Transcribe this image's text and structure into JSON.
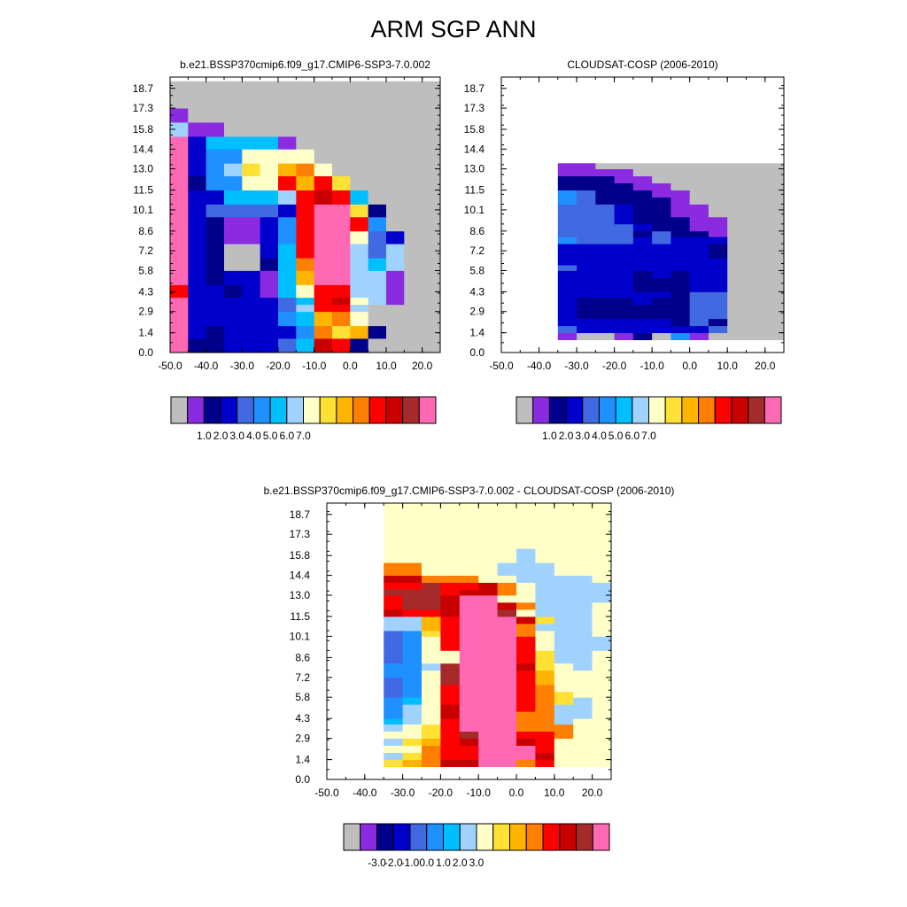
{
  "title": "ARM SGP ANN",
  "palette": {
    "missing": "#bebebe",
    "levels": [
      "#8a2be2",
      "#00008b",
      "#0000cd",
      "#4169e1",
      "#1e90ff",
      "#00bfff",
      "#a0d2ff",
      "#ffffc8",
      "#ffe135",
      "#ffb400",
      "#ff7f00",
      "#ff0000",
      "#c80000",
      "#a52a2a",
      "#ff69b4"
    ]
  },
  "chart_data": [
    {
      "type": "heatmap",
      "title": "b.e21.BSSP370cmip6.f09_g17.CMIP6-SSP3-7.0.002",
      "xticks": [
        "-50.0",
        "-40.0",
        "-30.0",
        "-20.0",
        "-10.0",
        "0.0",
        "10.0",
        "20.0"
      ],
      "yticks": [
        "0.0",
        "1.4",
        "2.9",
        "4.3",
        "5.8",
        "7.2",
        "8.6",
        "10.1",
        "11.5",
        "13.0",
        "14.4",
        "15.8",
        "17.3",
        "18.7"
      ],
      "xlim": [
        -50,
        25
      ],
      "ylim": [
        0,
        19.5
      ],
      "x_edges": [
        -50,
        -45,
        -40,
        -35,
        -30,
        -25,
        -20,
        -15,
        -10,
        -5,
        0,
        5,
        10,
        15,
        20,
        25
      ],
      "y_edges": [
        0,
        1,
        1.9,
        2.9,
        3.4,
        3.9,
        4.8,
        5.8,
        6.7,
        7.7,
        8.6,
        9.6,
        10.5,
        11.5,
        12.5,
        13.4,
        14.4,
        15.3,
        16.3,
        17.3,
        18.2,
        19.2
      ],
      "colorbar_labels": [
        "1.0",
        "2.0",
        "3.0",
        "4.0",
        "5.0",
        "6.0",
        "7.0"
      ],
      "rows": [
        [
          15,
          2,
          2,
          3,
          3,
          3,
          4,
          6,
          13,
          12,
          2,
          0,
          0,
          0,
          0
        ],
        [
          15,
          3,
          2,
          3,
          3,
          3,
          3,
          5,
          11,
          9,
          10,
          2,
          0,
          0,
          0
        ],
        [
          15,
          3,
          3,
          3,
          3,
          3,
          5,
          6,
          10,
          11,
          8,
          0,
          0,
          0,
          0
        ],
        [
          15,
          3,
          3,
          3,
          3,
          3,
          4,
          7,
          12,
          12,
          7,
          0,
          0,
          0,
          0
        ],
        [
          15,
          3,
          3,
          3,
          3,
          3,
          4,
          6,
          12,
          13,
          8,
          7,
          1,
          0,
          0
        ],
        [
          12,
          3,
          3,
          2,
          3,
          1,
          6,
          8,
          12,
          12,
          7,
          7,
          1,
          0,
          0
        ],
        [
          15,
          3,
          2,
          3,
          3,
          1,
          6,
          10,
          15,
          15,
          7,
          7,
          1,
          0,
          0
        ],
        [
          15,
          3,
          2,
          0,
          0,
          2,
          6,
          11,
          15,
          15,
          7,
          6,
          7,
          0,
          0
        ],
        [
          15,
          3,
          2,
          0,
          0,
          3,
          6,
          12,
          15,
          15,
          7,
          4,
          7,
          0,
          0
        ],
        [
          15,
          3,
          2,
          1,
          1,
          3,
          5,
          12,
          15,
          15,
          8,
          4,
          3,
          0,
          0
        ],
        [
          15,
          3,
          2,
          1,
          1,
          3,
          5,
          12,
          15,
          15,
          12,
          5,
          0,
          0,
          0
        ],
        [
          15,
          3,
          4,
          4,
          4,
          4,
          3,
          12,
          15,
          15,
          9,
          2,
          0,
          0,
          0
        ],
        [
          15,
          3,
          3,
          6,
          6,
          6,
          7,
          12,
          13,
          12,
          6,
          0,
          0,
          0,
          0
        ],
        [
          15,
          2,
          5,
          5,
          8,
          8,
          12,
          10,
          12,
          9,
          0,
          0,
          0,
          0,
          0
        ],
        [
          15,
          3,
          5,
          7,
          9,
          8,
          10,
          11,
          8,
          0,
          0,
          0,
          0,
          0,
          0
        ],
        [
          15,
          3,
          5,
          5,
          8,
          8,
          8,
          8,
          0,
          0,
          0,
          0,
          0,
          0,
          0
        ],
        [
          15,
          3,
          6,
          6,
          6,
          6,
          1,
          0,
          0,
          0,
          0,
          0,
          0,
          0,
          0
        ],
        [
          7,
          1,
          1,
          0,
          0,
          0,
          0,
          0,
          0,
          0,
          0,
          0,
          0,
          0,
          0
        ],
        [
          1,
          0,
          0,
          0,
          0,
          0,
          0,
          0,
          0,
          0,
          0,
          0,
          0,
          0,
          0
        ],
        [
          0,
          0,
          0,
          0,
          0,
          0,
          0,
          0,
          0,
          0,
          0,
          0,
          0,
          0,
          0
        ],
        [
          0,
          0,
          0,
          0,
          0,
          0,
          0,
          0,
          0,
          0,
          0,
          0,
          0,
          0,
          0
        ]
      ]
    },
    {
      "type": "heatmap",
      "title": "CLOUDSAT-COSP (2006-2010)",
      "xticks": [
        "-50.0",
        "-40.0",
        "-30.0",
        "-20.0",
        "-10.0",
        "0.0",
        "10.0",
        "20.0"
      ],
      "yticks": [
        "0.0",
        "1.4",
        "2.9",
        "4.3",
        "5.8",
        "7.2",
        "8.6",
        "10.1",
        "11.5",
        "13.0",
        "14.4",
        "15.8",
        "17.3",
        "18.7"
      ],
      "xlim": [
        -50,
        25
      ],
      "ylim": [
        0,
        19.5
      ],
      "x_edges": [
        -35,
        -30,
        -25,
        -20,
        -15,
        -10,
        -5,
        0,
        5,
        10,
        15,
        20,
        25
      ],
      "y_edges": [
        0.9,
        1.4,
        1.9,
        2.4,
        2.9,
        3.4,
        3.9,
        4.3,
        4.8,
        5.3,
        5.8,
        6.2,
        6.7,
        7.2,
        7.7,
        8.2,
        8.6,
        9.1,
        9.6,
        10.1,
        10.5,
        11.0,
        11.5,
        12.0,
        12.5,
        13.0,
        13.4
      ],
      "colorbar_labels": [
        "1.0",
        "2.0",
        "3.0",
        "4.0",
        "5.0",
        "6.0",
        "7.0"
      ],
      "rows": [
        [
          1,
          0,
          0,
          1,
          2,
          0,
          5,
          1,
          0,
          0,
          0,
          0
        ],
        [
          4,
          3,
          3,
          3,
          3,
          3,
          3,
          3,
          4,
          0,
          0,
          0
        ],
        [
          3,
          3,
          3,
          3,
          3,
          3,
          2,
          4,
          2,
          0,
          0,
          0
        ],
        [
          3,
          2,
          2,
          2,
          2,
          2,
          2,
          4,
          4,
          0,
          0,
          0
        ],
        [
          3,
          2,
          2,
          2,
          2,
          2,
          2,
          4,
          4,
          0,
          0,
          0
        ],
        [
          3,
          2,
          2,
          2,
          3,
          2,
          2,
          4,
          4,
          0,
          0,
          0
        ],
        [
          3,
          3,
          3,
          3,
          3,
          3,
          2,
          4,
          4,
          0,
          0,
          0
        ],
        [
          3,
          3,
          3,
          3,
          2,
          2,
          2,
          3,
          3,
          0,
          0,
          0
        ],
        [
          3,
          3,
          3,
          3,
          2,
          2,
          2,
          3,
          3,
          0,
          0,
          0
        ],
        [
          3,
          3,
          3,
          3,
          2,
          3,
          2,
          3,
          3,
          0,
          0,
          0
        ],
        [
          4,
          3,
          3,
          3,
          3,
          3,
          3,
          3,
          3,
          0,
          0,
          0
        ],
        [
          3,
          3,
          3,
          3,
          3,
          3,
          3,
          3,
          3,
          0,
          0,
          0
        ],
        [
          3,
          3,
          3,
          3,
          3,
          3,
          3,
          3,
          2,
          0,
          0,
          0
        ],
        [
          3,
          3,
          3,
          3,
          3,
          3,
          3,
          3,
          2,
          0,
          0,
          0
        ],
        [
          5,
          4,
          4,
          4,
          3,
          4,
          3,
          3,
          3,
          0,
          0,
          0
        ],
        [
          4,
          4,
          4,
          4,
          2,
          4,
          2,
          2,
          1,
          0,
          0,
          0
        ],
        [
          4,
          4,
          4,
          4,
          3,
          2,
          2,
          1,
          1,
          0,
          0,
          0
        ],
        [
          4,
          4,
          4,
          3,
          2,
          2,
          2,
          1,
          1,
          0,
          0,
          0
        ],
        [
          4,
          4,
          4,
          3,
          2,
          2,
          1,
          1,
          0,
          0,
          0,
          0
        ],
        [
          4,
          4,
          4,
          3,
          2,
          2,
          1,
          1,
          0,
          0,
          0,
          0
        ],
        [
          5,
          4,
          2,
          2,
          2,
          2,
          1,
          0,
          0,
          0,
          0,
          0
        ],
        [
          5,
          4,
          2,
          2,
          2,
          1,
          1,
          0,
          0,
          0,
          0,
          0
        ],
        [
          2,
          2,
          2,
          2,
          1,
          1,
          0,
          0,
          0,
          0,
          0,
          0
        ],
        [
          2,
          2,
          2,
          1,
          1,
          0,
          0,
          0,
          0,
          0,
          0,
          0
        ],
        [
          1,
          1,
          1,
          1,
          0,
          0,
          0,
          0,
          0,
          0,
          0,
          0
        ],
        [
          1,
          1,
          0,
          0,
          0,
          0,
          0,
          0,
          0,
          0,
          0,
          0
        ]
      ]
    },
    {
      "type": "heatmap",
      "title": "b.e21.BSSP370cmip6.f09_g17.CMIP6-SSP3-7.0.002 - CLOUDSAT-COSP (2006-2010)",
      "xticks": [
        "-50.0",
        "-40.0",
        "-30.0",
        "-20.0",
        "-10.0",
        "0.0",
        "10.0",
        "20.0"
      ],
      "yticks": [
        "0.0",
        "1.4",
        "2.9",
        "4.3",
        "5.8",
        "7.2",
        "8.6",
        "10.1",
        "11.5",
        "13.0",
        "14.4",
        "15.8",
        "17.3",
        "18.7"
      ],
      "xlim": [
        -50,
        25
      ],
      "ylim": [
        0,
        19.5
      ],
      "x_edges": [
        -35,
        -30,
        -25,
        -20,
        -15,
        -10,
        -5,
        0,
        5,
        10,
        15,
        20,
        25
      ],
      "y_edges": [
        0.9,
        1.4,
        1.9,
        2.4,
        2.9,
        3.4,
        3.9,
        4.3,
        4.8,
        5.3,
        5.8,
        6.2,
        6.7,
        7.2,
        7.7,
        8.2,
        8.6,
        9.1,
        9.6,
        10.1,
        10.5,
        11.0,
        11.5,
        12.0,
        12.5,
        13.0,
        13.4,
        13.9,
        14.4,
        15.3,
        16.3,
        17.3,
        18.2,
        19.5
      ],
      "colorbar_labels": [
        "-3.0",
        "-2.0",
        "-1.0",
        "0.0",
        "1.0",
        "2.0",
        "3.0"
      ],
      "rows": [
        [
          9,
          10,
          11,
          13,
          13,
          15,
          15,
          11,
          12,
          8,
          8,
          8
        ],
        [
          7,
          9,
          11,
          12,
          12,
          15,
          15,
          15,
          13,
          8,
          8,
          8
        ],
        [
          8,
          8,
          11,
          12,
          12,
          15,
          15,
          15,
          12,
          8,
          8,
          8
        ],
        [
          7,
          9,
          10,
          12,
          13,
          15,
          15,
          13,
          12,
          8,
          8,
          8
        ],
        [
          8,
          8,
          9,
          12,
          14,
          15,
          15,
          12,
          12,
          11,
          8,
          8
        ],
        [
          7,
          8,
          9,
          12,
          15,
          15,
          15,
          11,
          11,
          11,
          8,
          8
        ],
        [
          6,
          7,
          8,
          12,
          15,
          15,
          15,
          11,
          11,
          7,
          8,
          8
        ],
        [
          5,
          7,
          8,
          13,
          15,
          15,
          15,
          11,
          11,
          7,
          7,
          8
        ],
        [
          5,
          7,
          8,
          13,
          15,
          15,
          15,
          12,
          11,
          7,
          7,
          8
        ],
        [
          5,
          6,
          8,
          12,
          15,
          15,
          15,
          12,
          11,
          9,
          7,
          8
        ],
        [
          4,
          5,
          8,
          12,
          15,
          15,
          15,
          12,
          11,
          9,
          8,
          8
        ],
        [
          4,
          5,
          8,
          12,
          15,
          15,
          15,
          12,
          11,
          8,
          8,
          8
        ],
        [
          4,
          5,
          8,
          14,
          15,
          15,
          15,
          12,
          10,
          8,
          8,
          8
        ],
        [
          5,
          5,
          8,
          14,
          15,
          15,
          15,
          12,
          10,
          8,
          8,
          8
        ],
        [
          5,
          5,
          7,
          14,
          15,
          15,
          15,
          13,
          9,
          8,
          7,
          8
        ],
        [
          4,
          5,
          8,
          8,
          15,
          15,
          15,
          12,
          9,
          7,
          7,
          8
        ],
        [
          4,
          5,
          8,
          8,
          15,
          15,
          15,
          12,
          9,
          7,
          7,
          8
        ],
        [
          4,
          5,
          8,
          12,
          15,
          15,
          15,
          12,
          8,
          7,
          7,
          7
        ],
        [
          4,
          5,
          8,
          12,
          15,
          15,
          15,
          12,
          8,
          7,
          7,
          7
        ],
        [
          4,
          5,
          9,
          12,
          15,
          15,
          15,
          11,
          8,
          7,
          7,
          8
        ],
        [
          7,
          7,
          10,
          12,
          15,
          15,
          15,
          11,
          7,
          7,
          7,
          8
        ],
        [
          7,
          7,
          10,
          12,
          15,
          15,
          15,
          13,
          9,
          7,
          7,
          8
        ],
        [
          13,
          12,
          12,
          13,
          15,
          15,
          14,
          8,
          7,
          7,
          7,
          8
        ],
        [
          12,
          14,
          14,
          13,
          15,
          15,
          13,
          11,
          7,
          7,
          7,
          8
        ],
        [
          12,
          14,
          14,
          13,
          15,
          15,
          8,
          8,
          7,
          7,
          7,
          7
        ],
        [
          14,
          14,
          14,
          12,
          13,
          13,
          11,
          8,
          7,
          7,
          7,
          7
        ],
        [
          12,
          12,
          14,
          12,
          12,
          13,
          11,
          8,
          7,
          7,
          7,
          7
        ],
        [
          13,
          13,
          11,
          11,
          11,
          8,
          8,
          7,
          7,
          7,
          7,
          8
        ],
        [
          11,
          11,
          8,
          8,
          8,
          8,
          7,
          7,
          7,
          8,
          8,
          8
        ],
        [
          8,
          8,
          8,
          8,
          8,
          8,
          8,
          7,
          8,
          8,
          8,
          8
        ],
        [
          8,
          8,
          8,
          8,
          8,
          8,
          8,
          8,
          8,
          8,
          8,
          8
        ],
        [
          8,
          8,
          8,
          8,
          8,
          8,
          8,
          8,
          8,
          8,
          8,
          8
        ],
        [
          8,
          8,
          8,
          8,
          8,
          8,
          8,
          8,
          8,
          8,
          8,
          8
        ]
      ]
    }
  ]
}
